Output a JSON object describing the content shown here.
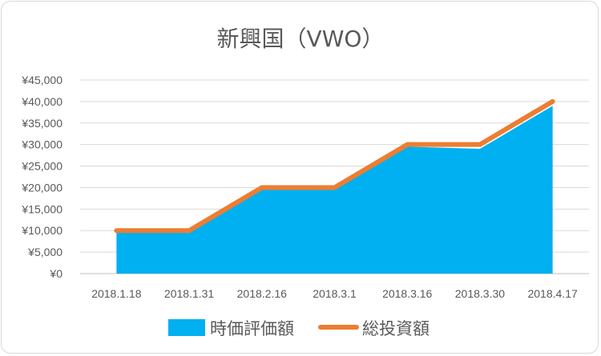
{
  "chart_data": {
    "type": "area",
    "title": "新興国（VWO）",
    "categories": [
      "2018.1.18",
      "2018.1.31",
      "2018.2.16",
      "2018.3.1",
      "2018.3.16",
      "2018.3.30",
      "2018.4.17"
    ],
    "y_ticks": [
      "¥0",
      "¥5,000",
      "¥10,000",
      "¥15,000",
      "¥20,000",
      "¥25,000",
      "¥30,000",
      "¥35,000",
      "¥40,000",
      "¥45,000"
    ],
    "ylim": [
      0,
      45000
    ],
    "grid": true,
    "legend_position": "bottom",
    "series": [
      {
        "name": "時価評価額",
        "type": "area",
        "color": "#00b0f0",
        "values": [
          9500,
          9500,
          19500,
          19500,
          29500,
          29000,
          39000
        ]
      },
      {
        "name": "総投資額",
        "type": "line",
        "color": "#ed7d31",
        "values": [
          10000,
          10000,
          20000,
          20000,
          30000,
          30000,
          40000
        ]
      }
    ]
  }
}
